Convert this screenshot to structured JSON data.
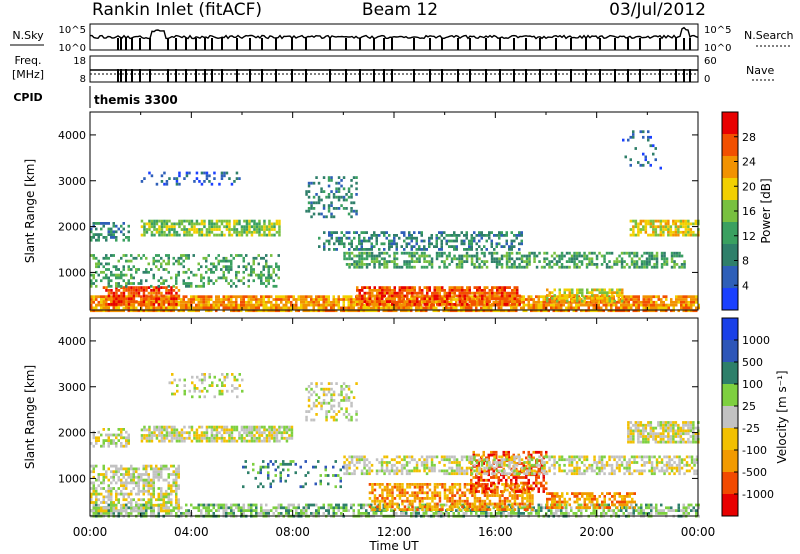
{
  "header": {
    "title": "Rankin Inlet (fitACF)",
    "beam": "Beam 12",
    "date": "03/Jul/2012"
  },
  "strips": {
    "nsky": {
      "label": "N.Sky",
      "ticks": [
        "10^5",
        "10^0"
      ],
      "right_label": "N.Search",
      "right_ticks": [
        "10^5",
        "10^0"
      ]
    },
    "freq": {
      "label_line1": "Freq.",
      "label_line2": "[MHz]",
      "ticks": [
        "18",
        "8"
      ],
      "right_label": "Nave",
      "right_ticks": [
        "60",
        "0"
      ]
    },
    "cpid": {
      "label": "CPID",
      "value": "themis 3300"
    }
  },
  "colors": {
    "power": [
      "#1a40ff",
      "#2e5fb8",
      "#2f7f6a",
      "#3aa060",
      "#78c040",
      "#f2d000",
      "#f29200",
      "#f25000",
      "#e80000"
    ],
    "velocity": [
      "#e80000",
      "#f24a00",
      "#f29a00",
      "#f2c000",
      "#c2c2c2",
      "#7ed040",
      "#2e7f6a",
      "#2e56b8",
      "#1a40e8"
    ]
  },
  "chart_data": [
    {
      "type": "heatmap",
      "panel": "power",
      "ylabel": "Slant Range [km]",
      "yticks": [
        "1000",
        "2000",
        "3000",
        "4000"
      ],
      "ylim": [
        180,
        4500
      ],
      "xlim": [
        0,
        24
      ],
      "colorbar": {
        "label": "Power [dB]",
        "ticks": [
          "4",
          "8",
          "12",
          "16",
          "20",
          "24",
          "28"
        ],
        "range": [
          0,
          32
        ]
      },
      "bands": [
        {
          "t": [
            0.0,
            24.0
          ],
          "r": [
            180,
            500
          ],
          "level": 6,
          "density": 0.85
        },
        {
          "t": [
            0.5,
            3.5
          ],
          "r": [
            300,
            700
          ],
          "level": 7,
          "density": 0.7
        },
        {
          "t": [
            10.5,
            17.0
          ],
          "r": [
            300,
            700
          ],
          "level": 7,
          "density": 0.8
        },
        {
          "t": [
            18.0,
            21.0
          ],
          "r": [
            400,
            650
          ],
          "level": 5,
          "density": 0.7
        },
        {
          "t": [
            0.0,
            7.5
          ],
          "r": [
            700,
            1400
          ],
          "level": 3,
          "density": 0.35
        },
        {
          "t": [
            10.0,
            23.5
          ],
          "r": [
            1100,
            1450
          ],
          "level": 3,
          "density": 0.55
        },
        {
          "t": [
            2.0,
            7.5
          ],
          "r": [
            1800,
            2150
          ],
          "level": 4,
          "density": 0.7
        },
        {
          "t": [
            0.0,
            1.5
          ],
          "r": [
            1700,
            2100
          ],
          "level": 2,
          "density": 0.5
        },
        {
          "t": [
            9.0,
            17.0
          ],
          "r": [
            1500,
            1900
          ],
          "level": 2,
          "density": 0.5
        },
        {
          "t": [
            21.3,
            24.0
          ],
          "r": [
            1800,
            2150
          ],
          "level": 5,
          "density": 0.75
        },
        {
          "t": [
            8.5,
            10.5
          ],
          "r": [
            2200,
            3100
          ],
          "level": 2,
          "density": 0.3
        },
        {
          "t": [
            2.0,
            6.0
          ],
          "r": [
            2900,
            3200
          ],
          "level": 1,
          "density": 0.2
        },
        {
          "t": [
            21.0,
            22.5
          ],
          "r": [
            3300,
            4100
          ],
          "level": 1,
          "density": 0.15
        }
      ]
    },
    {
      "type": "heatmap",
      "panel": "velocity",
      "xlabel": "Time UT",
      "xticks": [
        "00:00",
        "04:00",
        "08:00",
        "12:00",
        "16:00",
        "20:00",
        "00:00"
      ],
      "ylabel": "Slant Range [km]",
      "yticks": [
        "1000",
        "2000",
        "3000",
        "4000"
      ],
      "ylim": [
        180,
        4500
      ],
      "xlim": [
        0,
        24
      ],
      "colorbar": {
        "label": "Velocity [m s⁻¹]",
        "ticks": [
          "1000",
          "500",
          "100",
          "25",
          "-25",
          "-100",
          "-500",
          "-1000"
        ]
      },
      "bands": [
        {
          "t": [
            0.0,
            24.0
          ],
          "r": [
            180,
            450
          ],
          "level": 5,
          "density": 0.6
        },
        {
          "t": [
            0.0,
            3.5
          ],
          "r": [
            300,
            1300
          ],
          "level": 4,
          "density": 0.6
        },
        {
          "t": [
            11.0,
            17.5
          ],
          "r": [
            350,
            900
          ],
          "level": 2,
          "density": 0.65
        },
        {
          "t": [
            15.0,
            18.0
          ],
          "r": [
            700,
            1600
          ],
          "level": 1,
          "density": 0.5
        },
        {
          "t": [
            18.0,
            21.5
          ],
          "r": [
            350,
            700
          ],
          "level": 2,
          "density": 0.6
        },
        {
          "t": [
            10.0,
            24.0
          ],
          "r": [
            1100,
            1500
          ],
          "level": 4,
          "density": 0.55
        },
        {
          "t": [
            2.0,
            8.0
          ],
          "r": [
            1800,
            2150
          ],
          "level": 4,
          "density": 0.75
        },
        {
          "t": [
            0.0,
            1.5
          ],
          "r": [
            1700,
            2100
          ],
          "level": 4,
          "density": 0.5
        },
        {
          "t": [
            21.2,
            24.0
          ],
          "r": [
            1800,
            2250
          ],
          "level": 4,
          "density": 0.75
        },
        {
          "t": [
            8.5,
            10.5
          ],
          "r": [
            2300,
            3100
          ],
          "level": 4,
          "density": 0.35
        },
        {
          "t": [
            3.0,
            6.0
          ],
          "r": [
            2800,
            3300
          ],
          "level": 4,
          "density": 0.3
        },
        {
          "t": [
            6.0,
            10.0
          ],
          "r": [
            800,
            1400
          ],
          "level": 6,
          "density": 0.2
        }
      ]
    }
  ]
}
